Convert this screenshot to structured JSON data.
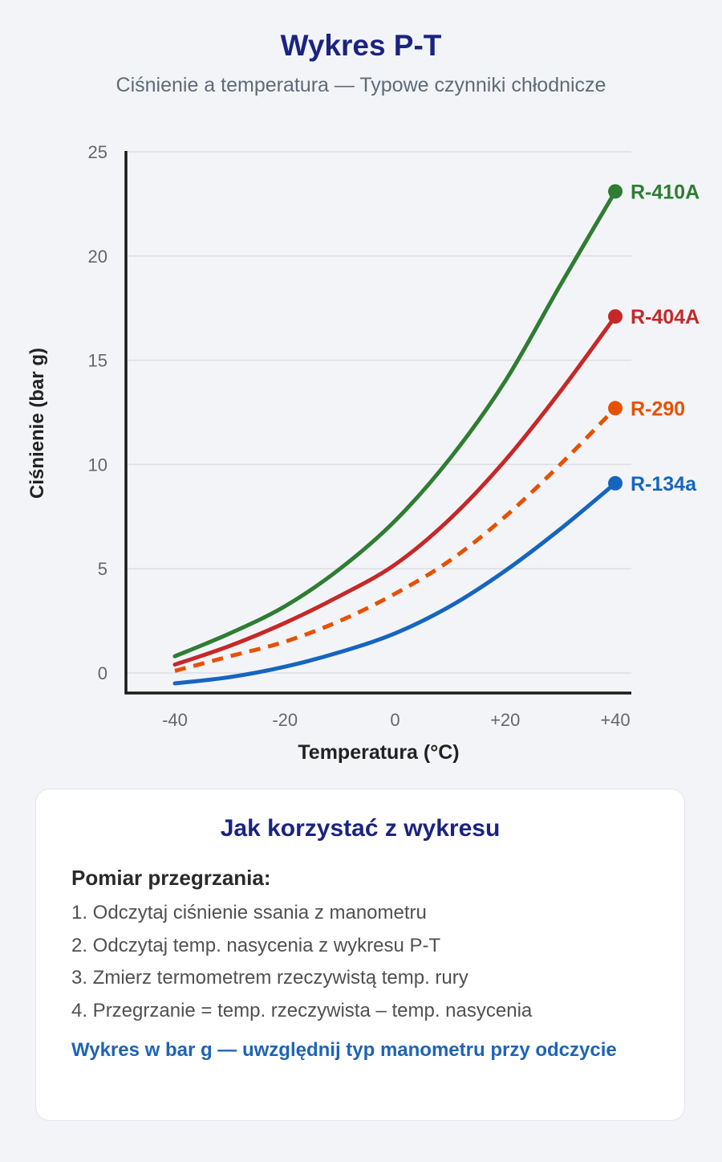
{
  "header": {
    "title": "Wykres P-T",
    "subtitle": "Ciśnienie a temperatura — Typowe czynniki chłodnicze"
  },
  "chart_data": {
    "type": "line",
    "xlabel": "Temperatura (°C)",
    "ylabel": "Ciśnienie (bar g)",
    "xlim": [
      -40,
      40
    ],
    "ylim": [
      0,
      25
    ],
    "x_ticks": [
      -40,
      -20,
      0,
      20,
      40
    ],
    "x_tick_labels": [
      "-40",
      "-20",
      "0",
      "+20",
      "+40"
    ],
    "y_ticks": [
      0,
      5,
      10,
      15,
      20,
      25
    ],
    "y_tick_labels": [
      "0",
      "5",
      "10",
      "15",
      "20",
      "25"
    ],
    "grid": "horizontal",
    "x": [
      -40,
      -30,
      -20,
      -10,
      0,
      10,
      20,
      30,
      40
    ],
    "series": [
      {
        "name": "R-410A",
        "color": "#2e7d32",
        "dashed": false,
        "values": [
          0.8,
          1.9,
          3.2,
          5.0,
          7.3,
          10.3,
          14.0,
          18.6,
          23.1
        ]
      },
      {
        "name": "R-404A",
        "color": "#c62828",
        "dashed": false,
        "values": [
          0.4,
          1.3,
          2.4,
          3.7,
          5.2,
          7.4,
          10.2,
          13.5,
          17.1
        ]
      },
      {
        "name": "R-290",
        "color": "#e65100",
        "dashed": true,
        "values": [
          0.1,
          0.8,
          1.5,
          2.5,
          3.8,
          5.4,
          7.5,
          10.0,
          12.7
        ]
      },
      {
        "name": "R-134a",
        "color": "#1565c0",
        "dashed": false,
        "values": [
          -0.5,
          -0.2,
          0.3,
          1.0,
          1.9,
          3.2,
          4.9,
          6.9,
          9.1
        ]
      }
    ]
  },
  "card": {
    "title": "Jak korzystać z wykresu",
    "heading": "Pomiar przegrzania:",
    "steps": [
      "1. Odczytaj ciśnienie ssania z manometru",
      "2. Odczytaj temp. nasycenia z wykresu P-T",
      "3. Zmierz termometrem rzeczywistą temp. rury",
      "4. Przegrzanie = temp. rzeczywista – temp. nasycenia"
    ],
    "note": "Wykres w bar g — uwzględnij typ manometru przy odczycie"
  }
}
